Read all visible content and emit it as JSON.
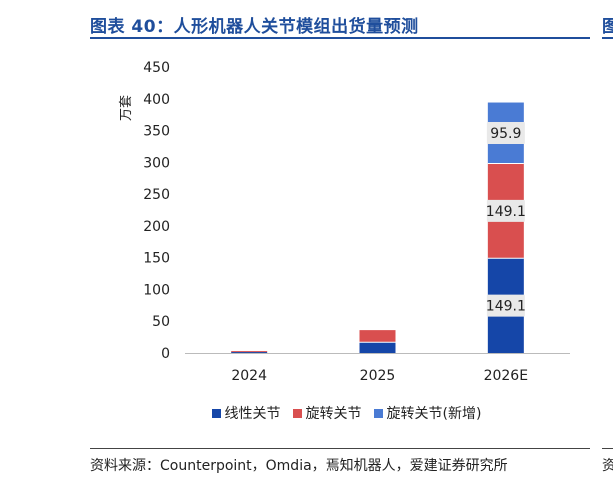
{
  "title": "图表 40：人形机器人关节模组出货量预测",
  "edge_title_glyph": "图",
  "edge_source_glyph": "资",
  "source": "资料来源：Counterpoint，Omdia，焉知机器人，爱建证券研究所",
  "colors": {
    "title": "#1f4e9c",
    "linear": "#1546a8",
    "rotary": "#d94f4f",
    "rotary_new": "#4a7bd4"
  },
  "chart_data": {
    "type": "bar",
    "stacked": true,
    "categories": [
      "2024",
      "2025",
      "2026E"
    ],
    "ylabel": "万套",
    "ylim": [
      0,
      450
    ],
    "yticks": [
      0,
      50,
      100,
      150,
      200,
      250,
      300,
      350,
      400,
      450
    ],
    "grid": false,
    "legend_position": "bottom",
    "series": [
      {
        "name": "线性关节",
        "values": [
          1.5,
          17,
          149.1
        ],
        "color": "#1546a8"
      },
      {
        "name": "旋转关节",
        "values": [
          1.5,
          19,
          149.1
        ],
        "color": "#d94f4f"
      },
      {
        "name": "旋转关节(新增)",
        "values": [
          0,
          0,
          95.9
        ],
        "color": "#4a7bd4"
      }
    ],
    "data_labels": [
      {
        "category": "2026E",
        "series": "线性关节",
        "text": "149.1"
      },
      {
        "category": "2026E",
        "series": "旋转关节",
        "text": "149.1"
      },
      {
        "category": "2026E",
        "series": "旋转关节(新增)",
        "text": "95.9"
      }
    ]
  }
}
